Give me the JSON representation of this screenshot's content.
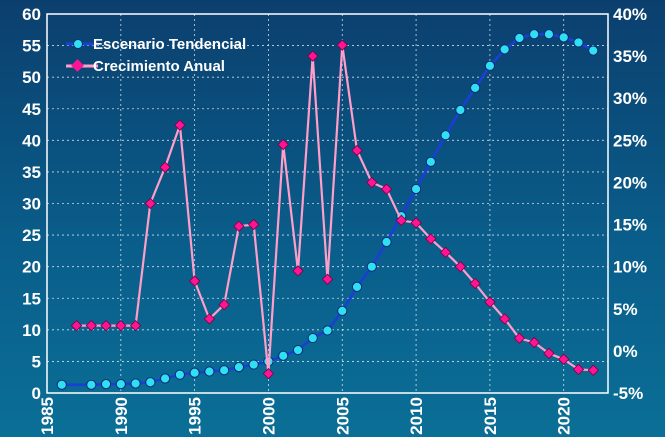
{
  "chart_data": {
    "type": "line",
    "title": "",
    "xlabel": "",
    "ylabel_left": "",
    "ylabel_right": "",
    "xlim": [
      1985,
      2023
    ],
    "ylim_left": [
      0,
      60
    ],
    "ylim_right": [
      -5,
      40
    ],
    "x_ticks": [
      1985,
      1990,
      1995,
      2000,
      2005,
      2010,
      2015,
      2020
    ],
    "y_left_ticks": [
      0,
      5,
      10,
      15,
      20,
      25,
      30,
      35,
      40,
      45,
      50,
      55,
      60
    ],
    "y_right_ticks": [
      "-5%",
      "0%",
      "5%",
      "10%",
      "15%",
      "20%",
      "25%",
      "30%",
      "35%",
      "40%"
    ],
    "y_right_values": [
      -5,
      0,
      5,
      10,
      15,
      20,
      25,
      30,
      35,
      40
    ],
    "grid": true,
    "legend_position": "top-left",
    "series": [
      {
        "name": "Escenario Tendencial",
        "axis": "left",
        "color": "#1a3fd6",
        "marker_color": "#2fe0f0",
        "x": [
          1986,
          1988,
          1989,
          1990,
          1991,
          1992,
          1993,
          1994,
          1995,
          1996,
          1997,
          1998,
          1999,
          2000,
          2001,
          2002,
          2003,
          2004,
          2005,
          2006,
          2007,
          2008,
          2009,
          2010,
          2011,
          2012,
          2013,
          2014,
          2015,
          2016,
          2017,
          2018,
          2019,
          2020,
          2021,
          2022
        ],
        "y": [
          1.3,
          1.3,
          1.4,
          1.4,
          1.5,
          1.7,
          2.3,
          2.9,
          3.2,
          3.4,
          3.6,
          4.1,
          4.5,
          5.0,
          5.9,
          6.8,
          8.7,
          9.9,
          13.0,
          16.8,
          20.0,
          23.9,
          28.0,
          32.3,
          36.6,
          40.8,
          44.8,
          48.3,
          51.8,
          54.4,
          56.2,
          56.8,
          56.8,
          56.3,
          55.5,
          54.2
        ]
      },
      {
        "name": "Crecimiento Anual",
        "axis": "right",
        "color": "#ff9ec9",
        "marker_color": "#ff1493",
        "x": [
          1987,
          1988,
          1989,
          1990,
          1991,
          1992,
          1993,
          1994,
          1995,
          1996,
          1997,
          1998,
          1999,
          2000,
          2001,
          2002,
          2003,
          2004,
          2005,
          2006,
          2007,
          2008,
          2009,
          2010,
          2011,
          2012,
          2013,
          2014,
          2015,
          2016,
          2017,
          2018,
          2019,
          2020,
          2021,
          2022
        ],
        "y": [
          3,
          3,
          3,
          3,
          3,
          17.5,
          21.8,
          26.8,
          8.3,
          3.8,
          5.5,
          14.8,
          15,
          -2.7,
          24.5,
          9.5,
          35,
          8.5,
          36.3,
          23.8,
          20,
          19.2,
          15.5,
          15.2,
          13.3,
          11.7,
          10,
          8,
          5.8,
          3.8,
          1.5,
          1,
          -0.3,
          -1,
          -2.2,
          -2.3
        ]
      }
    ]
  }
}
